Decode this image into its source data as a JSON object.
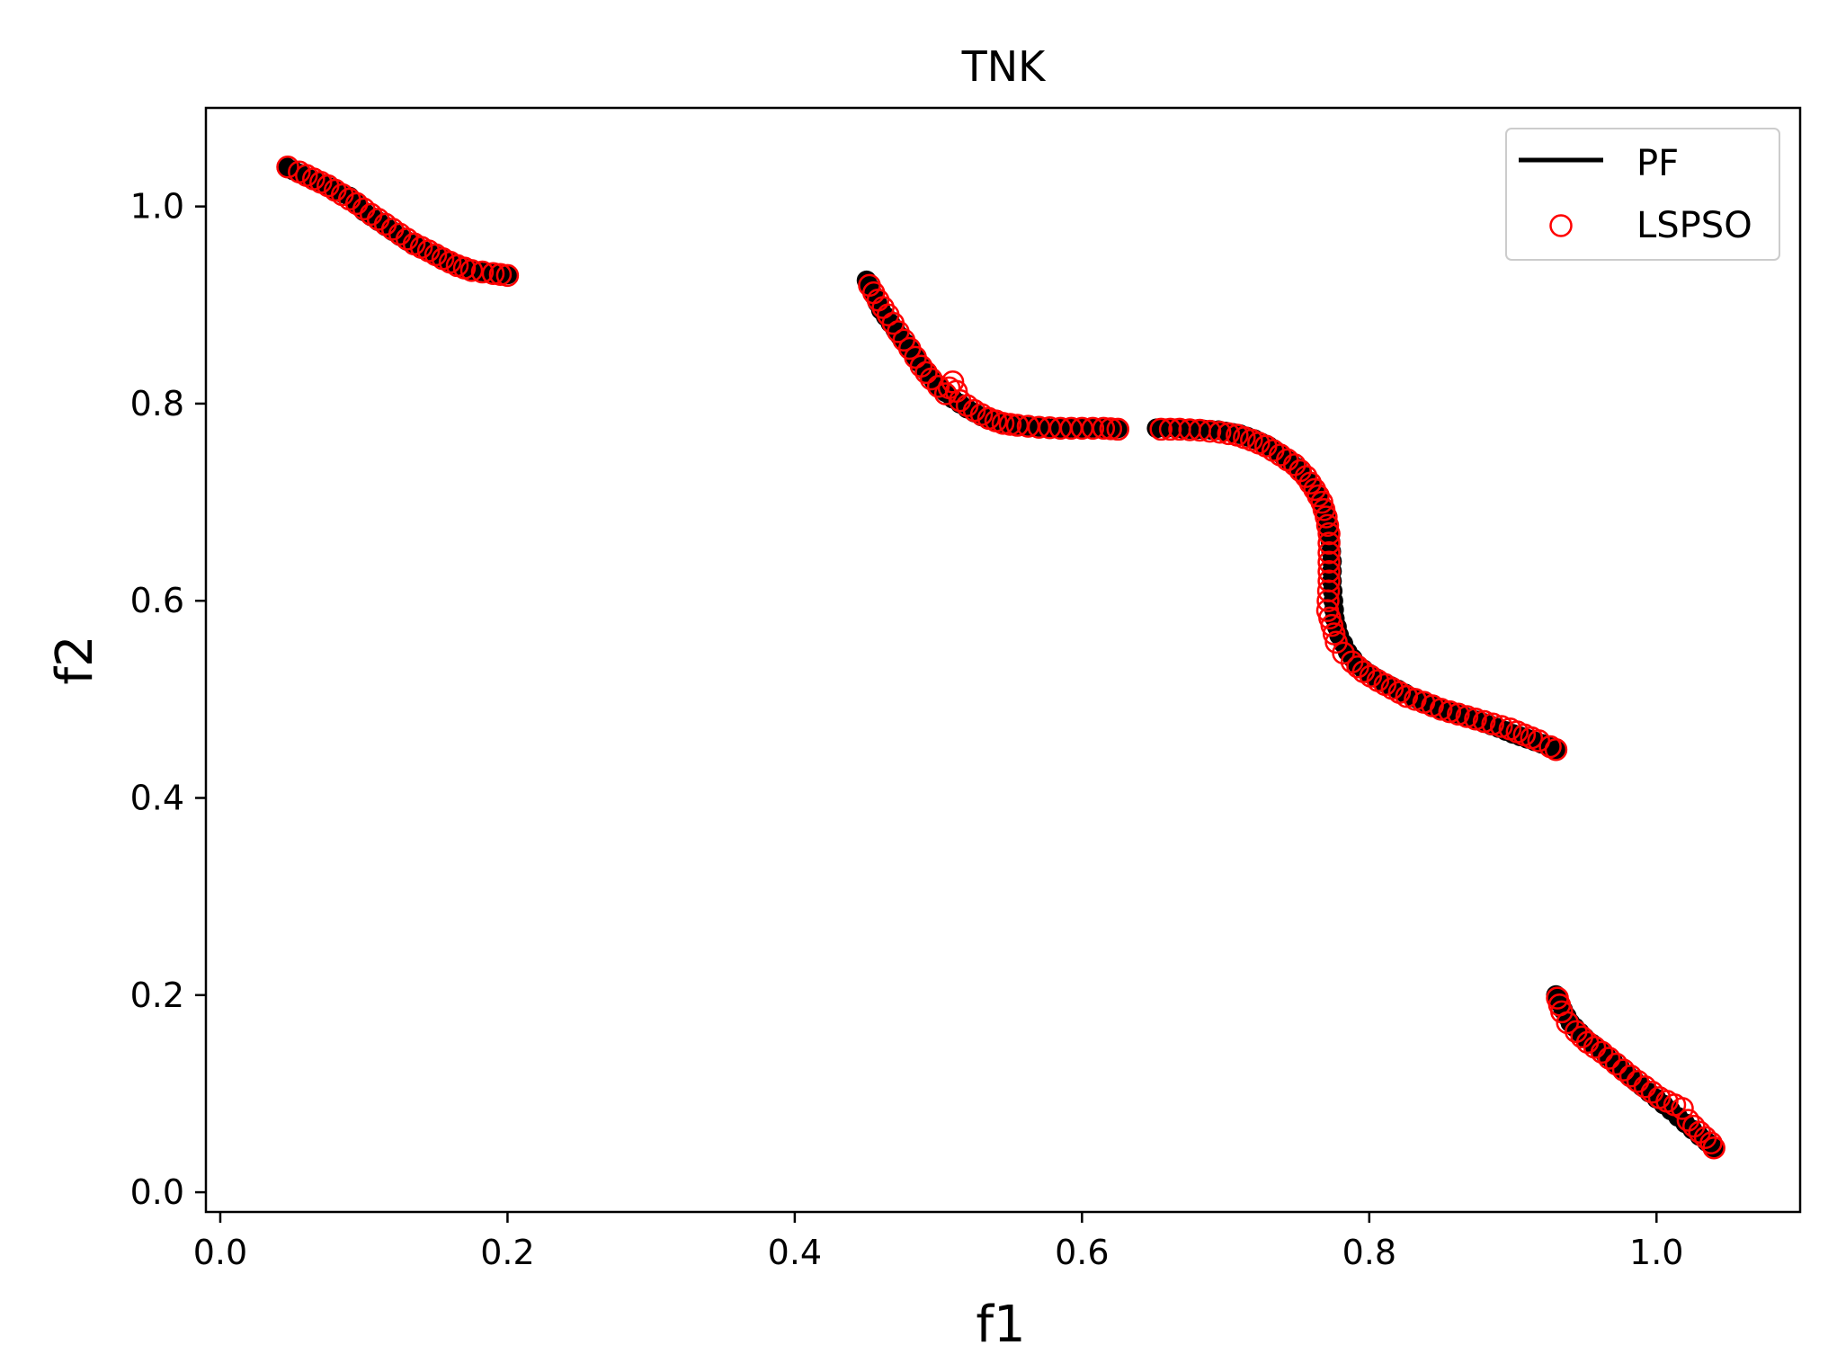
{
  "chart_data": {
    "type": "scatter",
    "title": "TNK",
    "xlabel": "f1",
    "ylabel": "f2",
    "xlim": [
      -0.01,
      1.1
    ],
    "ylim": [
      -0.02,
      1.1
    ],
    "xticks": [
      0.0,
      0.2,
      0.4,
      0.6,
      0.8,
      1.0
    ],
    "xtick_labels": [
      "0.0",
      "0.2",
      "0.4",
      "0.6",
      "0.8",
      "1.0"
    ],
    "yticks": [
      0.0,
      0.2,
      0.4,
      0.6,
      0.8,
      1.0
    ],
    "ytick_labels": [
      "0.0",
      "0.2",
      "0.4",
      "0.6",
      "0.8",
      "1.0"
    ],
    "grid": false,
    "legend_position": "top-right",
    "series": [
      {
        "name": "PF",
        "marker": "filled-circle",
        "legend_marker": "line",
        "color": "#000000",
        "segments": [
          [
            [
              0.046,
              1.04
            ],
            [
              0.06,
              1.03
            ],
            [
              0.075,
              1.02
            ],
            [
              0.09,
              1.01
            ],
            [
              0.1,
              0.995
            ],
            [
              0.11,
              0.985
            ],
            [
              0.12,
              0.975
            ],
            [
              0.13,
              0.965
            ],
            [
              0.14,
              0.957
            ],
            [
              0.15,
              0.95
            ],
            [
              0.16,
              0.943
            ],
            [
              0.17,
              0.937
            ],
            [
              0.18,
              0.934
            ],
            [
              0.19,
              0.932
            ],
            [
              0.2,
              0.931
            ]
          ],
          [
            [
              0.45,
              0.925
            ],
            [
              0.455,
              0.91
            ],
            [
              0.46,
              0.895
            ],
            [
              0.47,
              0.875
            ],
            [
              0.48,
              0.855
            ],
            [
              0.49,
              0.835
            ],
            [
              0.5,
              0.818
            ],
            [
              0.51,
              0.805
            ],
            [
              0.52,
              0.795
            ],
            [
              0.53,
              0.787
            ],
            [
              0.54,
              0.782
            ],
            [
              0.55,
              0.779
            ],
            [
              0.56,
              0.777
            ],
            [
              0.57,
              0.776
            ],
            [
              0.58,
              0.775
            ],
            [
              0.59,
              0.775
            ],
            [
              0.6,
              0.775
            ],
            [
              0.61,
              0.775
            ],
            [
              0.625,
              0.775
            ]
          ],
          [
            [
              0.652,
              0.775
            ],
            [
              0.665,
              0.775
            ],
            [
              0.68,
              0.774
            ],
            [
              0.695,
              0.773
            ],
            [
              0.71,
              0.769
            ],
            [
              0.72,
              0.764
            ],
            [
              0.73,
              0.757
            ],
            [
              0.74,
              0.747
            ],
            [
              0.75,
              0.735
            ],
            [
              0.757,
              0.722
            ],
            [
              0.763,
              0.71
            ],
            [
              0.768,
              0.695
            ],
            [
              0.771,
              0.678
            ],
            [
              0.773,
              0.66
            ],
            [
              0.774,
              0.64
            ],
            [
              0.774,
              0.62
            ],
            [
              0.775,
              0.6
            ],
            [
              0.776,
              0.582
            ],
            [
              0.779,
              0.565
            ],
            [
              0.785,
              0.548
            ],
            [
              0.792,
              0.535
            ],
            [
              0.8,
              0.526
            ],
            [
              0.81,
              0.517
            ],
            [
              0.82,
              0.51
            ],
            [
              0.83,
              0.502
            ],
            [
              0.84,
              0.496
            ],
            [
              0.85,
              0.49
            ],
            [
              0.86,
              0.486
            ],
            [
              0.87,
              0.481
            ],
            [
              0.88,
              0.476
            ],
            [
              0.89,
              0.471
            ],
            [
              0.9,
              0.465
            ],
            [
              0.91,
              0.46
            ],
            [
              0.92,
              0.455
            ],
            [
              0.93,
              0.449
            ]
          ],
          [
            [
              0.93,
              0.2
            ],
            [
              0.935,
              0.185
            ],
            [
              0.94,
              0.172
            ],
            [
              0.95,
              0.157
            ],
            [
              0.96,
              0.145
            ],
            [
              0.97,
              0.132
            ],
            [
              0.98,
              0.119
            ],
            [
              0.99,
              0.107
            ],
            [
              1.0,
              0.095
            ],
            [
              1.01,
              0.083
            ],
            [
              1.02,
              0.07
            ],
            [
              1.03,
              0.057
            ],
            [
              1.04,
              0.045
            ]
          ]
        ]
      },
      {
        "name": "LSPSO",
        "marker": "open-circle",
        "legend_marker": "open-circle",
        "color": "#ff0000",
        "segments": [
          [
            [
              0.047,
              1.04
            ],
            [
              0.055,
              1.035
            ],
            [
              0.065,
              1.028
            ],
            [
              0.075,
              1.021
            ],
            [
              0.085,
              1.012
            ],
            [
              0.095,
              1.003
            ],
            [
              0.105,
              0.992
            ],
            [
              0.115,
              0.982
            ],
            [
              0.125,
              0.972
            ],
            [
              0.135,
              0.962
            ],
            [
              0.145,
              0.955
            ],
            [
              0.155,
              0.947
            ],
            [
              0.165,
              0.94
            ],
            [
              0.175,
              0.935
            ],
            [
              0.19,
              0.932
            ],
            [
              0.2,
              0.93
            ]
          ],
          [
            [
              0.452,
              0.92
            ],
            [
              0.458,
              0.905
            ],
            [
              0.465,
              0.89
            ],
            [
              0.472,
              0.873
            ],
            [
              0.48,
              0.856
            ],
            [
              0.488,
              0.838
            ],
            [
              0.495,
              0.825
            ],
            [
              0.505,
              0.81
            ],
            [
              0.51,
              0.822
            ],
            [
              0.515,
              0.803
            ],
            [
              0.525,
              0.793
            ],
            [
              0.535,
              0.785
            ],
            [
              0.545,
              0.78
            ],
            [
              0.555,
              0.778
            ],
            [
              0.57,
              0.776
            ],
            [
              0.585,
              0.775
            ],
            [
              0.6,
              0.775
            ],
            [
              0.615,
              0.775
            ],
            [
              0.625,
              0.774
            ]
          ],
          [
            [
              0.655,
              0.774
            ],
            [
              0.668,
              0.774
            ],
            [
              0.682,
              0.773
            ],
            [
              0.696,
              0.771
            ],
            [
              0.708,
              0.768
            ],
            [
              0.718,
              0.763
            ],
            [
              0.728,
              0.757
            ],
            [
              0.738,
              0.748
            ],
            [
              0.748,
              0.738
            ],
            [
              0.756,
              0.726
            ],
            [
              0.762,
              0.713
            ],
            [
              0.767,
              0.7
            ],
            [
              0.77,
              0.685
            ],
            [
              0.772,
              0.668
            ],
            [
              0.772,
              0.62
            ],
            [
              0.771,
              0.59
            ],
            [
              0.774,
              0.575
            ],
            [
              0.777,
              0.558
            ],
            [
              0.782,
              0.547
            ],
            [
              0.788,
              0.538
            ],
            [
              0.796,
              0.528
            ],
            [
              0.806,
              0.519
            ],
            [
              0.816,
              0.511
            ],
            [
              0.826,
              0.503
            ],
            [
              0.838,
              0.497
            ],
            [
              0.85,
              0.49
            ],
            [
              0.862,
              0.485
            ],
            [
              0.874,
              0.48
            ],
            [
              0.886,
              0.475
            ],
            [
              0.898,
              0.47
            ],
            [
              0.908,
              0.464
            ],
            [
              0.918,
              0.458
            ],
            [
              0.926,
              0.452
            ],
            [
              0.93,
              0.449
            ]
          ],
          [
            [
              0.931,
              0.197
            ],
            [
              0.934,
              0.183
            ],
            [
              0.938,
              0.172
            ],
            [
              0.944,
              0.163
            ],
            [
              0.952,
              0.152
            ],
            [
              0.962,
              0.142
            ],
            [
              0.972,
              0.13
            ],
            [
              0.982,
              0.118
            ],
            [
              0.992,
              0.107
            ],
            [
              1.002,
              0.096
            ],
            [
              1.018,
              0.085
            ],
            [
              1.022,
              0.073
            ],
            [
              1.03,
              0.061
            ],
            [
              1.038,
              0.05
            ],
            [
              1.04,
              0.045
            ]
          ]
        ]
      }
    ]
  }
}
